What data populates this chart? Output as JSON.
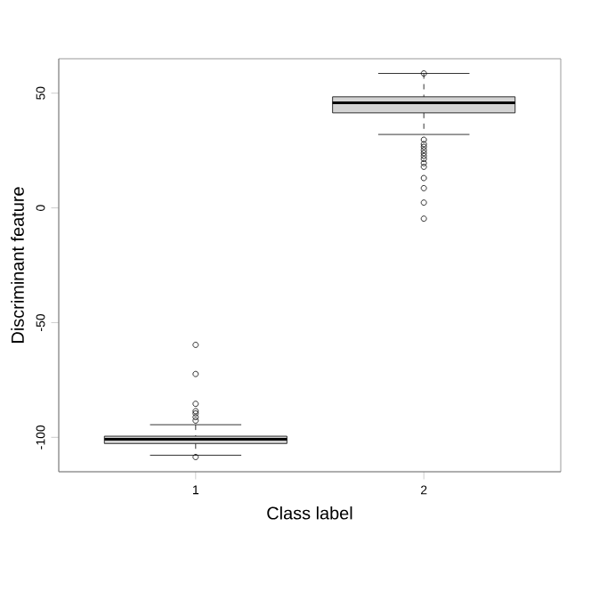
{
  "chart_data": {
    "type": "box",
    "xlabel": "Class label",
    "ylabel": "Discriminant feature",
    "categories": [
      "1",
      "2"
    ],
    "ylim": [
      -115,
      65
    ],
    "yticks": [
      -100,
      -50,
      0,
      50
    ],
    "color": "#d3d3d3",
    "grid": false,
    "boxes": [
      {
        "low": -107.8,
        "q1": -102.7,
        "median": -100.8,
        "q3": -99.5,
        "high": -94.5,
        "outliers": [
          -59.7,
          -72.4,
          -85.4,
          -88.6,
          -89.6,
          -91.2,
          -92.7,
          -108.6
        ]
      },
      {
        "low": 32,
        "q1": 41.4,
        "median": 45.8,
        "q3": 48.4,
        "high": 58.6,
        "outliers": [
          58.6,
          29.7,
          27.8,
          26.6,
          25.2,
          23.9,
          22.6,
          21.3,
          19.5,
          17.9,
          13,
          8.6,
          2.3,
          -4.7
        ]
      }
    ]
  }
}
